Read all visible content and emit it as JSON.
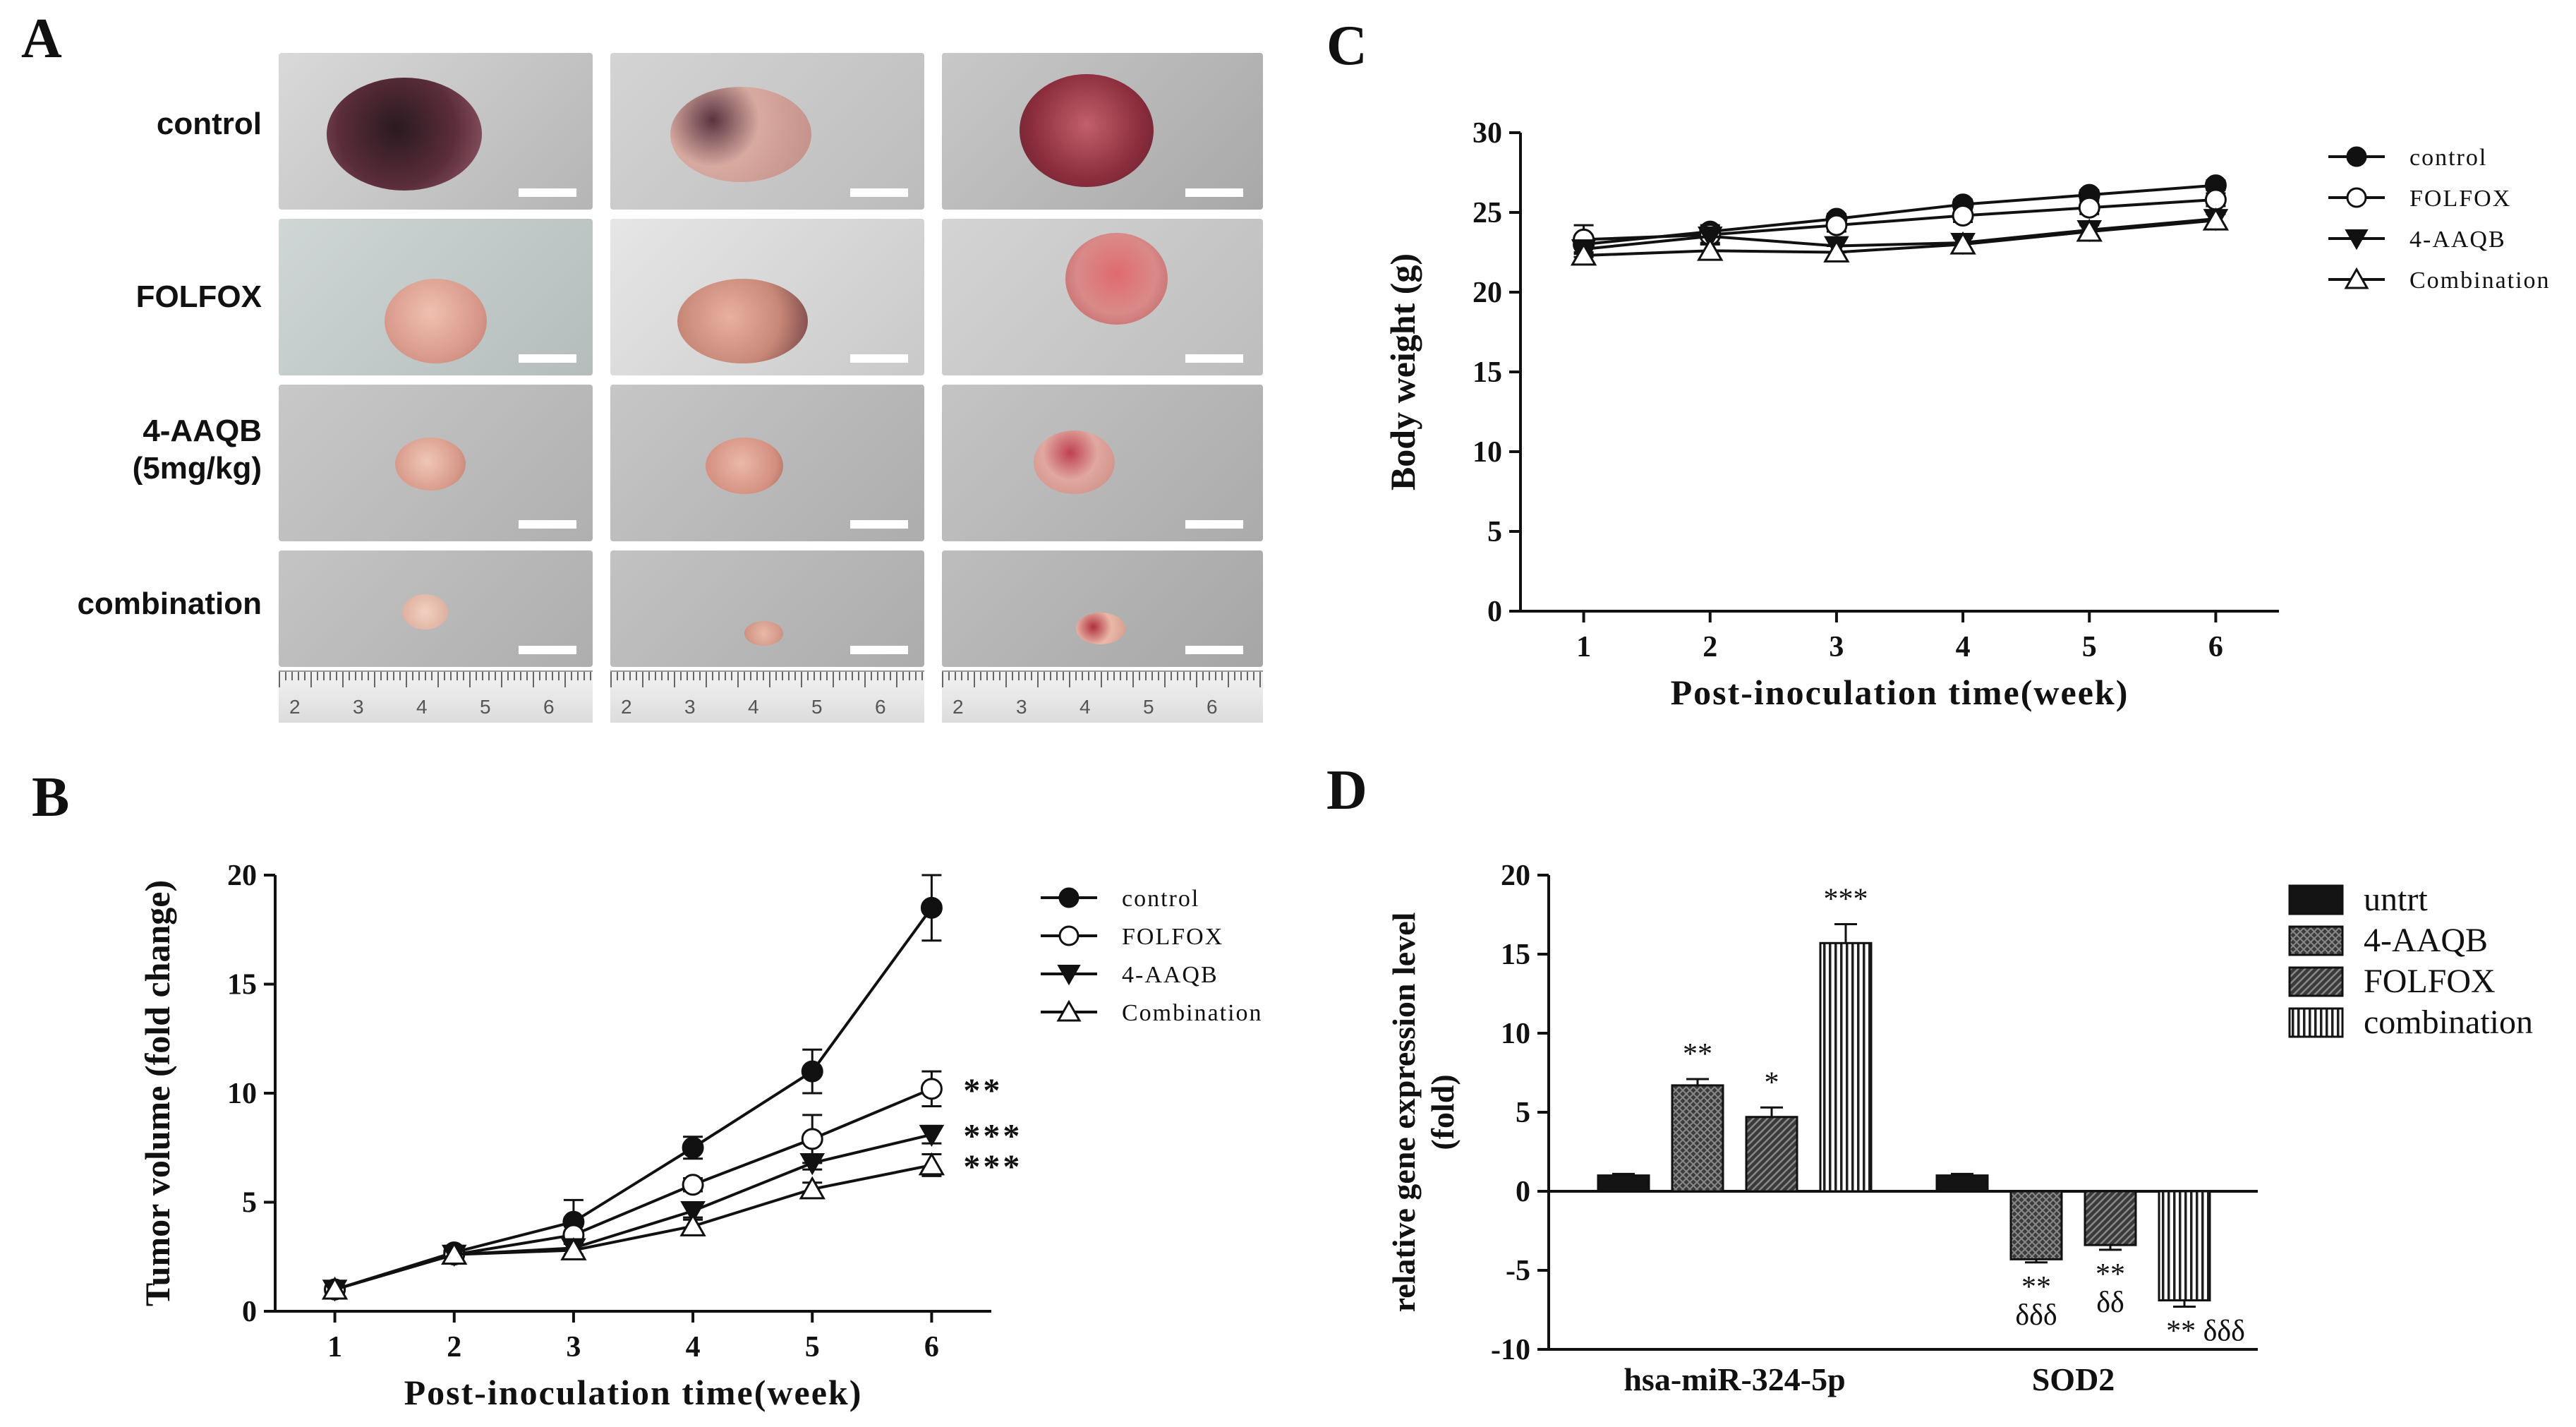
{
  "panels": {
    "a": "A",
    "b": "B",
    "c": "C",
    "d": "D"
  },
  "panel_a": {
    "rows": [
      {
        "label": "control"
      },
      {
        "label": "FOLFOX"
      },
      {
        "label": "4-AAQB",
        "label2": "(5mg/kg)"
      },
      {
        "label": "combination"
      }
    ],
    "ruler_numbers": [
      "2",
      "3",
      "4",
      "5",
      "6"
    ]
  },
  "chart_data": [
    {
      "id": "B",
      "type": "line",
      "xlabel": "Post-inoculation time(week)",
      "ylabel": "Tumor volume (fold change)",
      "x": [
        1,
        2,
        3,
        4,
        5,
        6
      ],
      "xlim": [
        0.5,
        6.5
      ],
      "ylim": [
        0,
        20
      ],
      "yticks": [
        0,
        5,
        10,
        15,
        20
      ],
      "series": [
        {
          "name": "control",
          "marker": "filled-circle",
          "values": [
            1.0,
            2.7,
            4.1,
            7.5,
            11.0,
            18.5
          ],
          "errors": [
            0.3,
            0.3,
            1.0,
            0.5,
            1.0,
            1.5
          ]
        },
        {
          "name": "FOLFOX",
          "marker": "open-circle",
          "values": [
            1.0,
            2.6,
            3.5,
            5.8,
            7.9,
            10.2
          ],
          "errors": [
            0.2,
            0.2,
            0.4,
            0.3,
            1.1,
            0.8
          ]
        },
        {
          "name": "4-AAQB",
          "marker": "filled-triangle-down",
          "values": [
            1.0,
            2.6,
            2.9,
            4.6,
            6.8,
            8.1
          ],
          "errors": [
            0.2,
            0.2,
            0.3,
            0.4,
            0.3,
            0.4
          ]
        },
        {
          "name": "Combination",
          "marker": "open-triangle-up",
          "values": [
            1.0,
            2.6,
            2.8,
            3.9,
            5.6,
            6.7
          ],
          "errors": [
            0.2,
            0.2,
            0.3,
            0.4,
            0.3,
            0.5
          ]
        }
      ],
      "annotations": [
        {
          "text": "**",
          "series": "FOLFOX"
        },
        {
          "text": "***",
          "series": "4-AAQB"
        },
        {
          "text": "***",
          "series": "Combination"
        }
      ]
    },
    {
      "id": "C",
      "type": "line",
      "xlabel": "Post-inoculation time(week)",
      "ylabel": "Body weight (g)",
      "x": [
        1,
        2,
        3,
        4,
        5,
        6
      ],
      "xlim": [
        0.5,
        6.5
      ],
      "ylim": [
        0,
        30
      ],
      "yticks": [
        0,
        5,
        10,
        15,
        20,
        25,
        30
      ],
      "series": [
        {
          "name": "control",
          "marker": "filled-circle",
          "values": [
            23.0,
            23.8,
            24.6,
            25.5,
            26.1,
            26.7
          ],
          "errors": [
            0.5,
            0.4,
            0.3,
            0.3,
            0.3,
            0.3
          ]
        },
        {
          "name": "FOLFOX",
          "marker": "open-circle",
          "values": [
            23.3,
            23.6,
            24.2,
            24.8,
            25.3,
            25.8
          ],
          "errors": [
            0.9,
            0.5,
            0.4,
            0.4,
            0.4,
            0.4
          ]
        },
        {
          "name": "4-AAQB",
          "marker": "filled-triangle-down",
          "values": [
            22.7,
            23.5,
            22.9,
            23.1,
            23.9,
            24.6
          ],
          "errors": [
            0.5,
            0.5,
            0.4,
            0.4,
            0.4,
            0.4
          ]
        },
        {
          "name": "Combination",
          "marker": "open-triangle-up",
          "values": [
            22.3,
            22.6,
            22.5,
            23.0,
            23.8,
            24.5
          ],
          "errors": [
            0.5,
            0.4,
            0.4,
            0.4,
            0.4,
            0.4
          ]
        }
      ]
    },
    {
      "id": "D",
      "type": "bar",
      "ylabel": "relative gene expression level (fold)",
      "ylabel_lines": [
        "relative gene expression level",
        "(fold)"
      ],
      "categories": [
        "hsa-miR-324-5p",
        "SOD2"
      ],
      "ylim": [
        -10,
        20
      ],
      "yticks": [
        -10,
        -5,
        0,
        5,
        10,
        15,
        20
      ],
      "series": [
        {
          "name": "untrt",
          "pattern": "solid",
          "values": [
            1.0,
            1.0
          ],
          "errors": [
            0.1,
            0.1
          ]
        },
        {
          "name": "4-AAQB",
          "pattern": "crosshatch",
          "values": [
            6.7,
            -4.3
          ],
          "errors": [
            0.4,
            0.2
          ]
        },
        {
          "name": "FOLFOX",
          "pattern": "diagonal",
          "values": [
            4.7,
            -3.4
          ],
          "errors": [
            0.6,
            0.3
          ]
        },
        {
          "name": "combination",
          "pattern": "vertical",
          "values": [
            15.7,
            -6.9
          ],
          "errors": [
            1.2,
            0.4
          ]
        }
      ],
      "annotations": [
        {
          "category": 0,
          "series": 1,
          "lines": [
            "**"
          ]
        },
        {
          "category": 0,
          "series": 2,
          "lines": [
            "*"
          ]
        },
        {
          "category": 0,
          "series": 3,
          "lines": [
            "***"
          ]
        },
        {
          "category": 1,
          "series": 1,
          "lines": [
            "**",
            "δδδ"
          ]
        },
        {
          "category": 1,
          "series": 2,
          "lines": [
            "**",
            "δδ"
          ]
        },
        {
          "category": 1,
          "series": 3,
          "lines": [
            "** δδδ"
          ]
        }
      ]
    }
  ],
  "colors": {
    "ink": "#111111",
    "bar_dark": "#141414",
    "bar_mid": "#4a4a4a",
    "photo_gray": "#b8b8b8",
    "photo_light": "#d6d6d6",
    "tumor_dark": "#4a2230",
    "tumor_pink": "#d89a90",
    "tumor_red": "#b8454f"
  }
}
